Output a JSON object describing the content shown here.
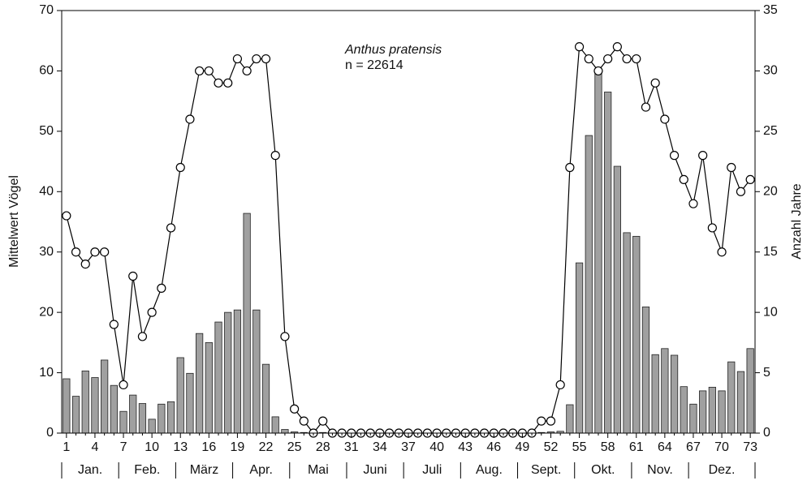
{
  "chart_data": {
    "type": "bar-line",
    "annotation_title": "Anthus pratensis",
    "annotation_n": "n = 22614",
    "ylabel": "Mittelwert Vögel",
    "y2label": "Anzahl Jahre",
    "categories": [
      1,
      null,
      null,
      4,
      null,
      null,
      7,
      null,
      null,
      10,
      null,
      null,
      13,
      null,
      null,
      16,
      null,
      null,
      19,
      null,
      null,
      22,
      null,
      null,
      25,
      null,
      null,
      28,
      null,
      null,
      31,
      null,
      null,
      34,
      null,
      null,
      37,
      null,
      null,
      40,
      null,
      null,
      43,
      null,
      null,
      46,
      null,
      null,
      49,
      null,
      null,
      52,
      null,
      null,
      55,
      null,
      null,
      58,
      null,
      null,
      61,
      null,
      null,
      64,
      null,
      null,
      67,
      null,
      null,
      70,
      null,
      null,
      73
    ],
    "months": [
      "Jan.",
      "Feb.",
      "März",
      "Apr.",
      "Mai",
      "Juni",
      "Juli",
      "Aug.",
      "Sept.",
      "Okt.",
      "Nov.",
      "Dez."
    ],
    "ylim": [
      0,
      70
    ],
    "yticks": [
      0,
      10,
      20,
      30,
      40,
      50,
      60,
      70
    ],
    "y2lim": [
      0,
      35
    ],
    "y2ticks": [
      0,
      5,
      10,
      15,
      20,
      25,
      30,
      35
    ],
    "series": [
      {
        "type": "bar",
        "color": "#a0a0a0",
        "values": [
          9,
          6.1,
          10.3,
          9.2,
          12.1,
          7.9,
          3.6,
          6.3,
          4.9,
          2.3,
          4.8,
          5.2,
          12.5,
          9.9,
          16.5,
          15,
          18.4,
          20,
          20.4,
          36.4,
          20.4,
          11.4,
          2.7,
          0.6,
          0.2,
          0.1,
          0,
          0.1,
          0,
          0,
          0,
          0,
          0,
          0,
          0,
          0,
          0,
          0,
          0,
          0,
          0,
          0,
          0,
          0,
          0,
          0,
          0,
          0,
          0,
          0,
          0.1,
          0.2,
          0.3,
          4.7,
          28.2,
          49.3,
          60,
          56.5,
          44.2,
          33.2,
          32.6,
          20.9,
          13,
          14,
          12.9,
          7.7,
          4.8,
          7,
          7.6,
          7,
          11.8,
          10.2,
          14
        ]
      },
      {
        "type": "line",
        "axis": "y2",
        "color": "#000000",
        "values": [
          18,
          15,
          14,
          15,
          15,
          9,
          4,
          13,
          8,
          10,
          12,
          17,
          22,
          26,
          30,
          30,
          29,
          29,
          31,
          30,
          31,
          31,
          23,
          8,
          2,
          1,
          0,
          1,
          0,
          0,
          0,
          0,
          0,
          0,
          0,
          0,
          0,
          0,
          0,
          0,
          0,
          0,
          0,
          0,
          0,
          0,
          0,
          0,
          0,
          0,
          1,
          1,
          4,
          22,
          32,
          31,
          30,
          31,
          32,
          31,
          31,
          27,
          29,
          26,
          23,
          21,
          19,
          23,
          17,
          15,
          22,
          20,
          21
        ]
      }
    ]
  }
}
